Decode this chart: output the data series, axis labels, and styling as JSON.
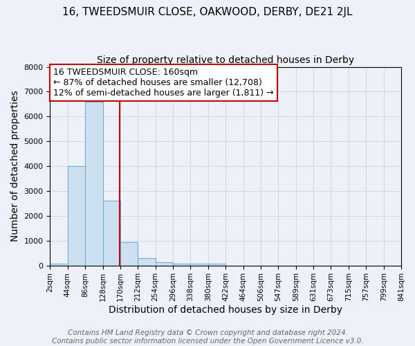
{
  "title": "16, TWEEDSMUIR CLOSE, OAKWOOD, DERBY, DE21 2JL",
  "subtitle": "Size of property relative to detached houses in Derby",
  "xlabel": "Distribution of detached houses by size in Derby",
  "ylabel": "Number of detached properties",
  "bin_labels": [
    "2sqm",
    "44sqm",
    "86sqm",
    "128sqm",
    "170sqm",
    "212sqm",
    "254sqm",
    "296sqm",
    "338sqm",
    "380sqm",
    "422sqm",
    "464sqm",
    "506sqm",
    "547sqm",
    "589sqm",
    "631sqm",
    "673sqm",
    "715sqm",
    "757sqm",
    "799sqm",
    "841sqm"
  ],
  "bar_heights": [
    75,
    4000,
    6600,
    2600,
    950,
    300,
    120,
    75,
    75,
    60,
    0,
    0,
    0,
    0,
    0,
    0,
    0,
    0,
    0,
    0
  ],
  "bar_color": "#cce0f0",
  "bar_edge_color": "#6baed6",
  "property_line_x": 3.95,
  "property_line_color": "#cc0000",
  "annotation_line1": "16 TWEEDSMUIR CLOSE: 160sqm",
  "annotation_line2": "← 87% of detached houses are smaller (12,708)",
  "annotation_line3": "12% of semi-detached houses are larger (1,811) →",
  "annotation_box_color": "#ffffff",
  "annotation_box_edge_color": "#cc0000",
  "footer_line1": "Contains HM Land Registry data © Crown copyright and database right 2024.",
  "footer_line2": "Contains public sector information licensed under the Open Government Licence v3.0.",
  "ylim": [
    0,
    8000
  ],
  "grid_color": "#d0d8e8",
  "background_color": "#eef2f8",
  "title_fontsize": 11,
  "subtitle_fontsize": 10,
  "axis_label_fontsize": 10,
  "tick_fontsize": 7.5,
  "annotation_fontsize": 9,
  "footer_fontsize": 7.5
}
